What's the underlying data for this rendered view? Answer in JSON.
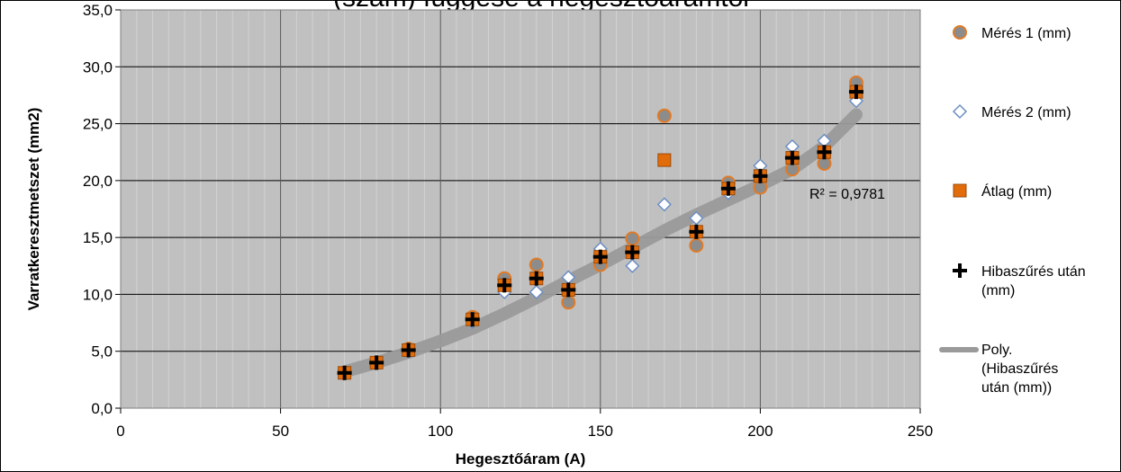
{
  "chart_data": {
    "type": "scatter",
    "title": "(szám) függése a hegesztőáramtól",
    "xlabel": "Hegesztőáram (A)",
    "ylabel": "Varratkeresztmetszet (mm2)",
    "xlim": [
      0,
      250
    ],
    "ylim": [
      0,
      35
    ],
    "x_ticks": [
      "0",
      "50",
      "100",
      "150",
      "200",
      "250"
    ],
    "y_ticks": [
      "0,0",
      "5,0",
      "10,0",
      "15,0",
      "20,0",
      "25,0",
      "30,0",
      "35,0"
    ],
    "grid": true,
    "legend_position": "right",
    "r_squared_label": "R² = 0,9781",
    "colors": {
      "plot_bg": "#c0c0c0",
      "grid": "#000000",
      "measure1": "#8c8c8c",
      "measure1_edge": "#e07b28",
      "measure2_edge": "#6d8fc4",
      "avg": "#e36c0a",
      "avg_edge": "#9b4a08",
      "filtered": "#000000",
      "trend": "#9a9a9a"
    },
    "series": [
      {
        "name": "Mérés 1 (mm)",
        "marker": "circle",
        "x": [
          70,
          80,
          90,
          110,
          120,
          130,
          140,
          150,
          160,
          170,
          180,
          190,
          200,
          210,
          220,
          230
        ],
        "y": [
          3.1,
          4.0,
          5.2,
          8.0,
          11.4,
          12.6,
          9.3,
          12.6,
          14.9,
          25.7,
          14.3,
          19.8,
          19.4,
          21.0,
          21.5,
          28.6
        ]
      },
      {
        "name": "Mérés 2 (mm)",
        "marker": "diamond",
        "x": [
          70,
          80,
          90,
          110,
          120,
          130,
          140,
          150,
          160,
          170,
          180,
          190,
          200,
          210,
          220,
          230
        ],
        "y": [
          3.1,
          4.0,
          5.0,
          7.6,
          10.2,
          10.2,
          11.5,
          14.0,
          12.5,
          17.9,
          16.7,
          18.9,
          21.3,
          23.0,
          23.5,
          27.0
        ]
      },
      {
        "name": "Átlag (mm)",
        "marker": "square",
        "x": [
          70,
          80,
          90,
          110,
          120,
          130,
          140,
          150,
          160,
          170,
          180,
          190,
          200,
          210,
          220,
          230
        ],
        "y": [
          3.1,
          4.0,
          5.1,
          7.8,
          10.8,
          11.4,
          10.4,
          13.3,
          13.7,
          21.8,
          15.5,
          19.3,
          20.4,
          22.0,
          22.5,
          27.8
        ]
      },
      {
        "name": "Hibaszűrés után (mm)",
        "marker": "plus",
        "x": [
          70,
          80,
          90,
          110,
          120,
          130,
          140,
          150,
          160,
          180,
          190,
          200,
          210,
          220,
          230
        ],
        "y": [
          3.1,
          4.0,
          5.1,
          7.8,
          10.8,
          11.4,
          10.4,
          13.3,
          13.7,
          15.5,
          19.3,
          20.4,
          22.0,
          22.5,
          27.8
        ]
      }
    ],
    "trendline": {
      "name": "Poly. (Hibaszűrés után (mm))",
      "x": [
        70,
        80,
        90,
        100,
        110,
        120,
        130,
        140,
        150,
        160,
        170,
        180,
        190,
        200,
        210,
        220,
        230
      ],
      "y": [
        3.2,
        4.0,
        4.9,
        5.9,
        7.0,
        8.3,
        9.7,
        11.2,
        12.6,
        14.1,
        15.6,
        17.0,
        18.3,
        19.6,
        21.0,
        23.0,
        25.8
      ]
    }
  }
}
